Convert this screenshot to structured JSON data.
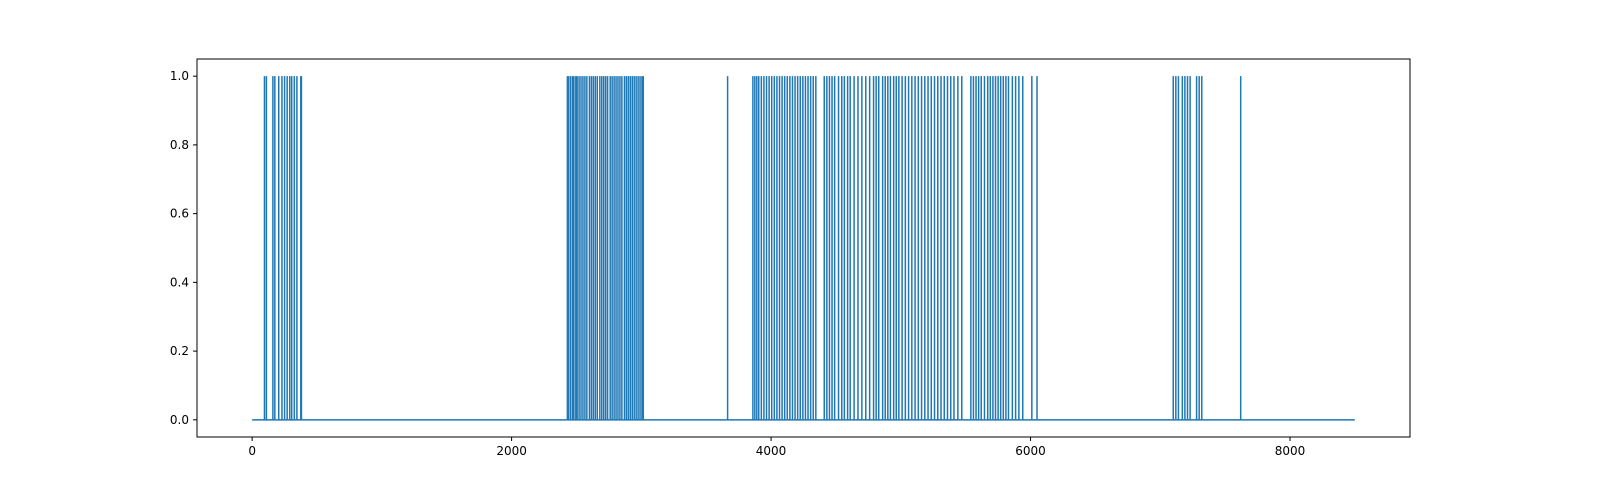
{
  "chart_data": {
    "type": "line",
    "title": "",
    "xlabel": "",
    "ylabel": "",
    "xlim": [
      -425,
      8925
    ],
    "ylim": [
      -0.05,
      1.05
    ],
    "x_ticks": [
      0,
      2000,
      4000,
      6000,
      8000
    ],
    "y_ticks": [
      0.0,
      0.2,
      0.4,
      0.6,
      0.8,
      1.0
    ],
    "x_tick_labels": [
      "0",
      "2000",
      "4000",
      "6000",
      "8000"
    ],
    "y_tick_labels": [
      "0.0",
      "0.2",
      "0.4",
      "0.6",
      "0.8",
      "1.0"
    ],
    "grid": false,
    "legend": "none",
    "series": [
      {
        "color": "#1f77b4",
        "x_start": 0,
        "x_end": 8500,
        "baseline": 0,
        "peak": 1,
        "spikes_at": [
          95,
          110,
          160,
          175,
          205,
          230,
          250,
          270,
          290,
          305,
          325,
          345,
          375,
          380,
          2430,
          2440,
          2455,
          2470,
          2480,
          2495,
          2505,
          2520,
          2535,
          2550,
          2565,
          2580,
          2600,
          2615,
          2630,
          2645,
          2660,
          2680,
          2695,
          2710,
          2725,
          2740,
          2760,
          2775,
          2790,
          2805,
          2820,
          2835,
          2850,
          2870,
          2885,
          2900,
          2915,
          2930,
          2945,
          2960,
          2975,
          2990,
          3005,
          3015,
          3665,
          3860,
          3875,
          3890,
          3905,
          3925,
          3945,
          3965,
          3985,
          4005,
          4025,
          4045,
          4065,
          4085,
          4105,
          4125,
          4145,
          4165,
          4185,
          4205,
          4225,
          4245,
          4265,
          4285,
          4305,
          4325,
          4345,
          4410,
          4430,
          4450,
          4470,
          4490,
          4520,
          4545,
          4565,
          4590,
          4610,
          4640,
          4670,
          4700,
          4730,
          4760,
          4790,
          4810,
          4830,
          4860,
          4880,
          4900,
          4920,
          4945,
          4965,
          4985,
          5010,
          5035,
          5060,
          5085,
          5110,
          5135,
          5160,
          5185,
          5210,
          5235,
          5260,
          5285,
          5310,
          5335,
          5360,
          5385,
          5410,
          5440,
          5470,
          5540,
          5560,
          5580,
          5600,
          5620,
          5645,
          5670,
          5690,
          5710,
          5730,
          5750,
          5770,
          5790,
          5810,
          5830,
          5860,
          5885,
          5910,
          5940,
          6010,
          6050,
          7100,
          7120,
          7140,
          7170,
          7190,
          7210,
          7230,
          7280,
          7300,
          7320,
          7620
        ]
      }
    ]
  }
}
